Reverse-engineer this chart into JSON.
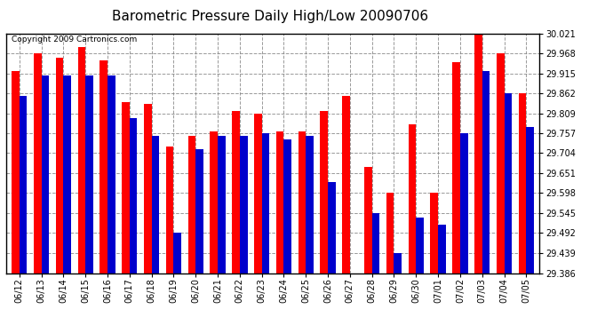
{
  "title": "Barometric Pressure Daily High/Low 20090706",
  "copyright": "Copyright 2009 Cartronics.com",
  "dates": [
    "06/12",
    "06/13",
    "06/14",
    "06/15",
    "06/16",
    "06/17",
    "06/18",
    "06/19",
    "06/20",
    "06/21",
    "06/22",
    "06/23",
    "06/24",
    "06/25",
    "06/26",
    "06/27",
    "06/28",
    "06/29",
    "06/30",
    "07/01",
    "07/02",
    "07/03",
    "07/04",
    "07/05"
  ],
  "highs": [
    29.921,
    29.968,
    29.956,
    29.985,
    29.95,
    29.839,
    29.833,
    29.721,
    29.75,
    29.762,
    29.815,
    29.809,
    29.762,
    29.762,
    29.815,
    29.856,
    29.668,
    29.598,
    29.78,
    29.598,
    29.944,
    30.021,
    29.968,
    29.862
  ],
  "lows": [
    29.856,
    29.909,
    29.909,
    29.909,
    29.909,
    29.797,
    29.75,
    29.492,
    29.715,
    29.75,
    29.75,
    29.756,
    29.739,
    29.75,
    29.627,
    29.386,
    29.545,
    29.439,
    29.533,
    29.515,
    29.757,
    29.921,
    29.862,
    29.774
  ],
  "high_color": "#ff0000",
  "low_color": "#0000cc",
  "bg_color": "#ffffff",
  "grid_color": "#808080",
  "ymin": 29.386,
  "ymax": 30.021,
  "yticks": [
    29.386,
    29.439,
    29.492,
    29.545,
    29.598,
    29.651,
    29.704,
    29.757,
    29.809,
    29.862,
    29.915,
    29.968,
    30.021
  ],
  "title_fontsize": 11,
  "tick_fontsize": 7,
  "copyright_fontsize": 6.5,
  "bar_width": 0.35
}
